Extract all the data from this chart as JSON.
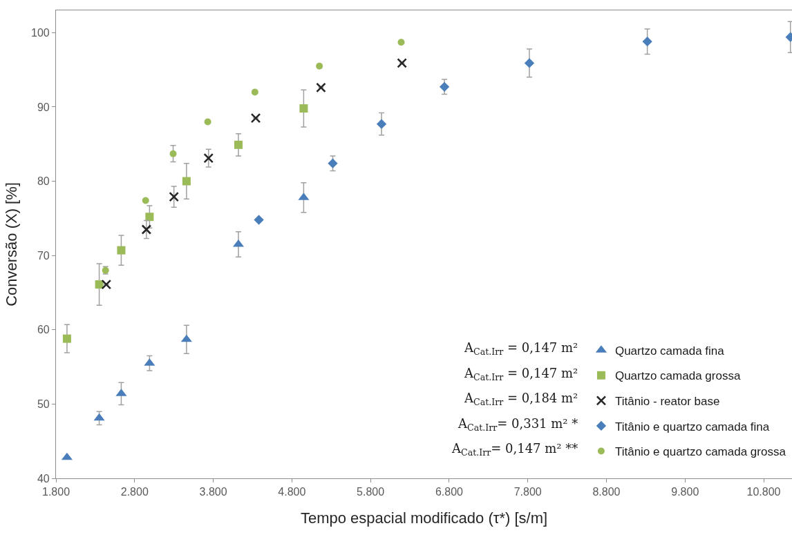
{
  "chart_data": {
    "type": "scatter",
    "xlabel": "Tempo espacial modificado (τ*) [s/m]",
    "ylabel": "Conversão (X) [%]",
    "xlim": [
      1800,
      11160
    ],
    "ylim": [
      40,
      103
    ],
    "xticks": [
      {
        "value": 1800,
        "label": "1.800"
      },
      {
        "value": 2800,
        "label": "2.800"
      },
      {
        "value": 3800,
        "label": "3.800"
      },
      {
        "value": 4800,
        "label": "4.800"
      },
      {
        "value": 5800,
        "label": "5.800"
      },
      {
        "value": 6800,
        "label": "6.800"
      },
      {
        "value": 7800,
        "label": "7.800"
      },
      {
        "value": 8800,
        "label": "8.800"
      },
      {
        "value": 9800,
        "label": "9.800"
      },
      {
        "value": 10800,
        "label": "10.800"
      }
    ],
    "yticks": [
      40,
      50,
      60,
      70,
      80,
      90,
      100
    ],
    "grid": false,
    "legend": "bottom right",
    "series": [
      {
        "name": "Quartzo camada fina",
        "color": "#4a7ebb",
        "marker": "triangle",
        "x": [
          1940,
          2350,
          2630,
          2990,
          3460,
          4120,
          4950
        ],
        "values": [
          42.8,
          48.1,
          51.4,
          55.5,
          58.7,
          71.5,
          77.8
        ],
        "errors": [
          null,
          0.9,
          1.5,
          1.0,
          1.9,
          1.7,
          2.0
        ]
      },
      {
        "name": "Quartzo camada grossa",
        "color": "#9bbb59",
        "marker": "square",
        "x": [
          1940,
          2350,
          2630,
          2990,
          3460,
          4120,
          4950
        ],
        "values": [
          58.8,
          66.1,
          70.7,
          75.2,
          80.0,
          84.9,
          89.8
        ],
        "errors": [
          1.9,
          2.8,
          2.0,
          1.5,
          2.4,
          1.5,
          2.5
        ]
      },
      {
        "name": "Titânio - reator base",
        "color": "#262626",
        "marker": "cross",
        "x": [
          2440,
          2950,
          3300,
          3740,
          4340,
          5170,
          6200
        ],
        "values": [
          66.1,
          73.5,
          77.9,
          83.1,
          88.5,
          92.6,
          95.9
        ],
        "errors": [
          null,
          1.2,
          1.4,
          1.2,
          null,
          null,
          null
        ]
      },
      {
        "name": "Titânio e quartzo camada fina",
        "color": "#4a7ebb",
        "marker": "diamond",
        "x": [
          4380,
          5320,
          5940,
          6740,
          7820,
          9320,
          11140
        ],
        "values": [
          74.8,
          82.4,
          87.7,
          92.7,
          95.9,
          98.8,
          99.4
        ],
        "errors": [
          null,
          1.0,
          1.5,
          1.0,
          1.9,
          1.7,
          2.1
        ]
      },
      {
        "name": "Titânio e quartzo camada grossa",
        "color": "#9bbb59",
        "marker": "circle",
        "x": [
          2430,
          2940,
          3290,
          3730,
          4330,
          5150,
          6190
        ],
        "values": [
          68.0,
          77.4,
          83.7,
          88.0,
          92.0,
          95.5,
          98.7
        ],
        "errors": [
          0.5,
          null,
          1.1,
          null,
          null,
          null,
          null
        ]
      }
    ],
    "annotations": [
      "A$_{Cat.Irr}$ = 0,147 m²",
      "A$_{Cat.Irr}$ = 0,147 m²",
      "A$_{Cat.Irr}$ = 0,184 m²",
      "A$_{Cat.Irr}$= 0,331 m² *",
      "A$_{Cat.Irr}$= 0,147 m² **"
    ]
  }
}
